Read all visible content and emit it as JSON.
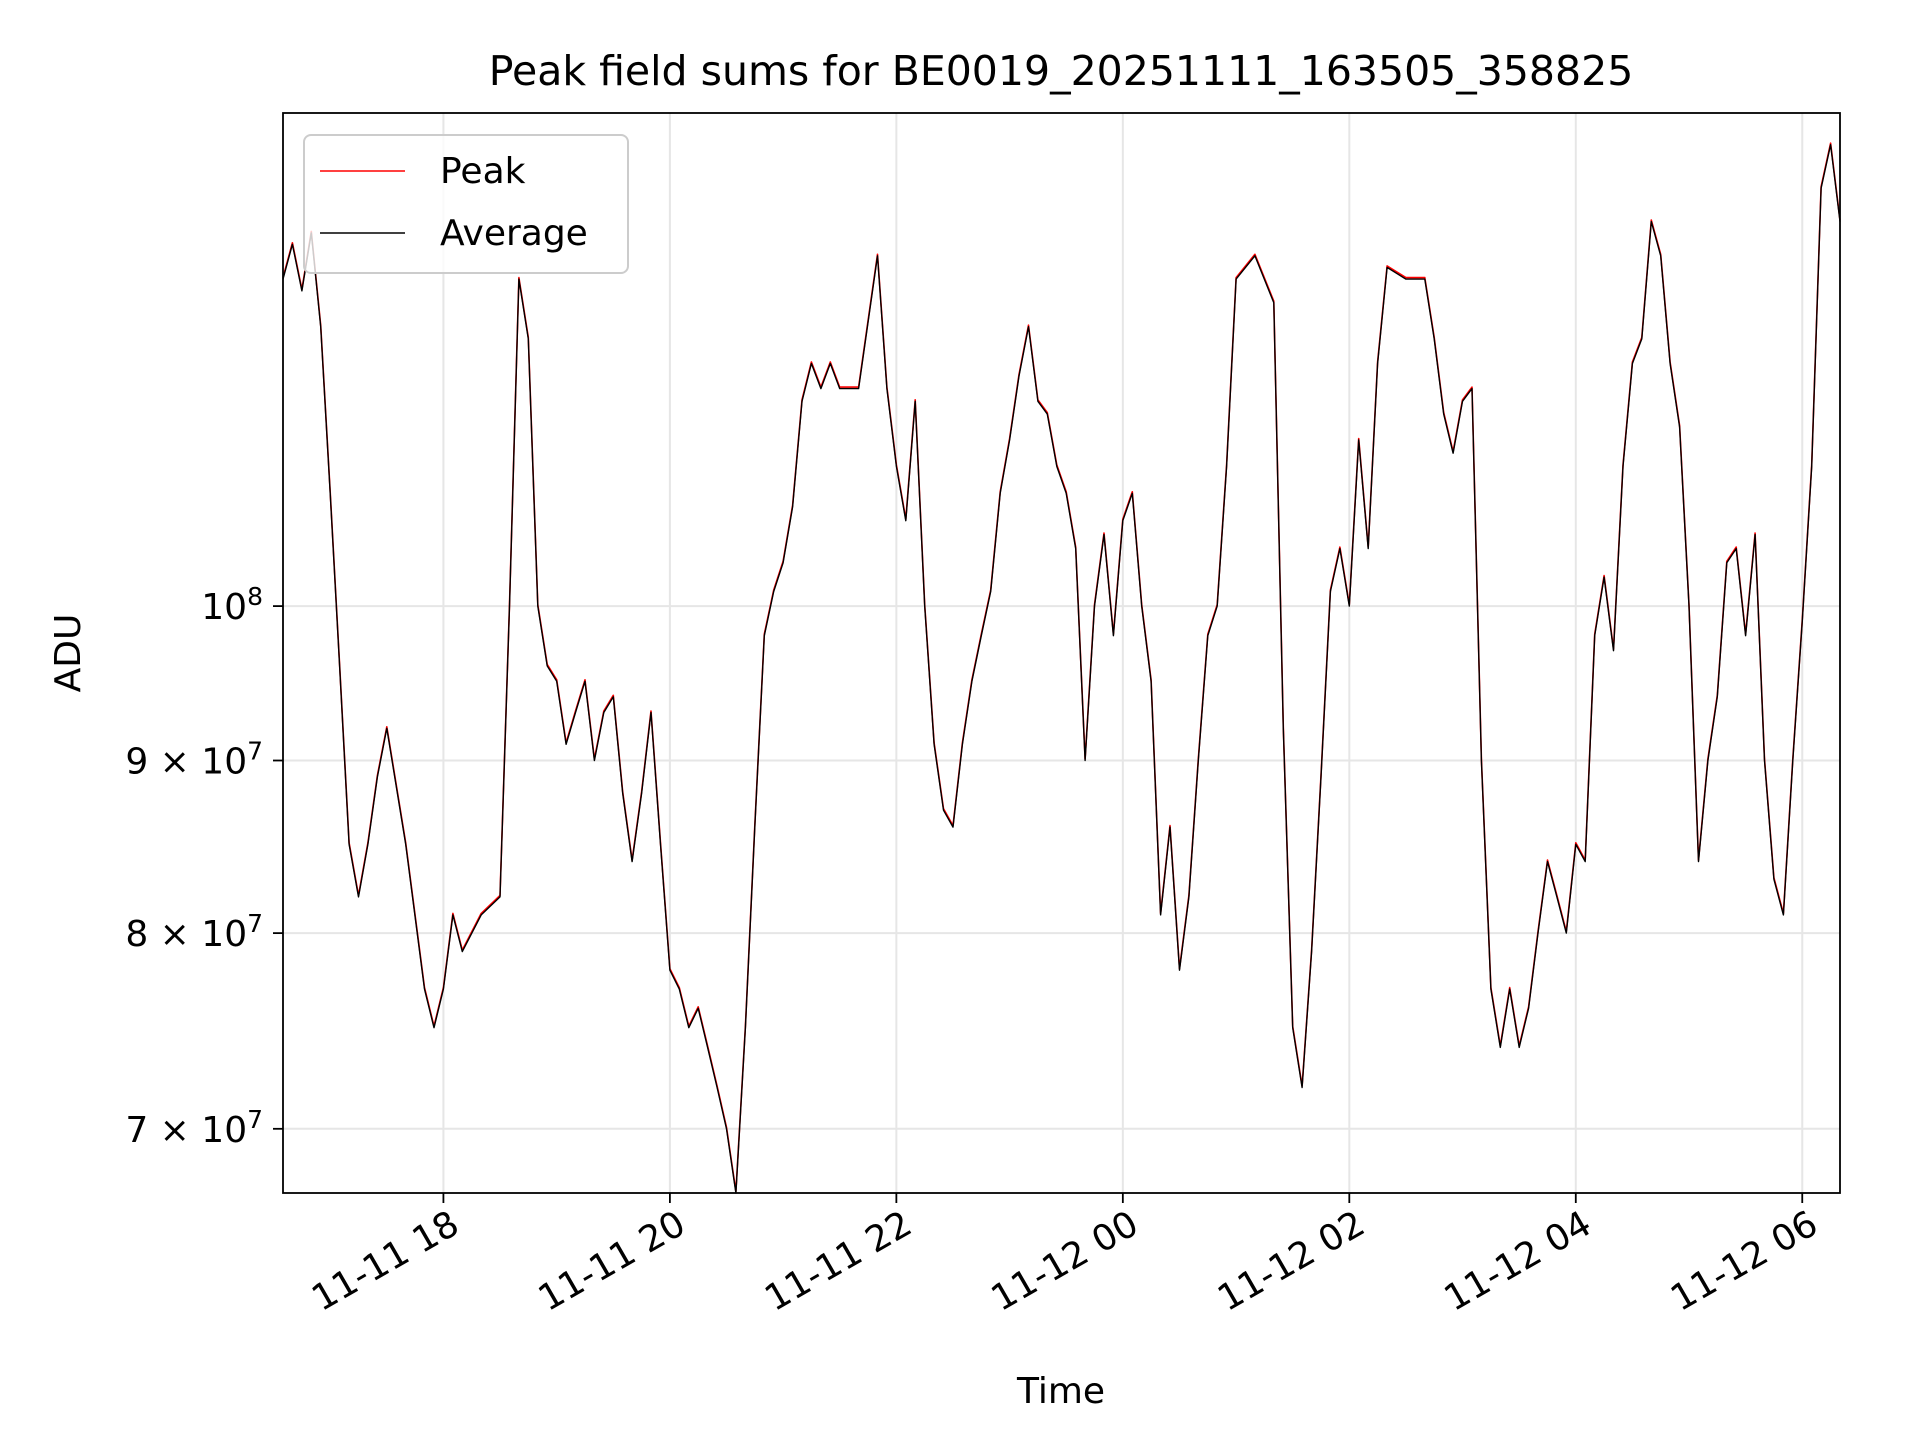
{
  "chart_data": {
    "type": "line",
    "title": "Peak field sums for BE0019_20251111_163505_358825",
    "xlabel": "Time",
    "ylabel": "ADU",
    "y_scale": "log",
    "xlim": [
      "2025-11-11 16:35",
      "2025-11-12 06:20"
    ],
    "ylim": [
      67000000,
      140000000
    ],
    "grid": true,
    "legend_position": "top-left",
    "x_ticks": [
      {
        "value": "2025-11-11 18:00",
        "label": "11-11 18"
      },
      {
        "value": "2025-11-11 20:00",
        "label": "11-11 20"
      },
      {
        "value": "2025-11-11 22:00",
        "label": "11-11 22"
      },
      {
        "value": "2025-11-12 00:00",
        "label": "11-12 00"
      },
      {
        "value": "2025-11-12 02:00",
        "label": "11-12 02"
      },
      {
        "value": "2025-11-12 04:00",
        "label": "11-12 04"
      },
      {
        "value": "2025-11-12 06:00",
        "label": "11-12 06"
      }
    ],
    "y_ticks": [
      {
        "value": 70000000,
        "base": "7 × 10",
        "exp": "7"
      },
      {
        "value": 80000000,
        "base": "8 × 10",
        "exp": "7"
      },
      {
        "value": 90000000,
        "base": "9 × 10",
        "exp": "7"
      },
      {
        "value": 100000000,
        "base": "10",
        "exp": "8"
      }
    ],
    "series": [
      {
        "name": "Peak",
        "color": "#ff0000"
      },
      {
        "name": "Average",
        "color": "#000000"
      }
    ],
    "x": [
      "2025-11-11 16:35",
      "2025-11-11 16:40",
      "2025-11-11 16:45",
      "2025-11-11 16:50",
      "2025-11-11 16:55",
      "2025-11-11 17:00",
      "2025-11-11 17:05",
      "2025-11-11 17:10",
      "2025-11-11 17:15",
      "2025-11-11 17:20",
      "2025-11-11 17:25",
      "2025-11-11 17:30",
      "2025-11-11 17:40",
      "2025-11-11 17:50",
      "2025-11-11 17:55",
      "2025-11-11 18:00",
      "2025-11-11 18:05",
      "2025-11-11 18:10",
      "2025-11-11 18:20",
      "2025-11-11 18:30",
      "2025-11-11 18:35",
      "2025-11-11 18:40",
      "2025-11-11 18:45",
      "2025-11-11 18:50",
      "2025-11-11 18:55",
      "2025-11-11 19:00",
      "2025-11-11 19:05",
      "2025-11-11 19:10",
      "2025-11-11 19:15",
      "2025-11-11 19:20",
      "2025-11-11 19:25",
      "2025-11-11 19:30",
      "2025-11-11 19:35",
      "2025-11-11 19:40",
      "2025-11-11 19:45",
      "2025-11-11 19:50",
      "2025-11-11 19:55",
      "2025-11-11 20:00",
      "2025-11-11 20:05",
      "2025-11-11 20:10",
      "2025-11-11 20:15",
      "2025-11-11 20:20",
      "2025-11-11 20:25",
      "2025-11-11 20:30",
      "2025-11-11 20:35",
      "2025-11-11 20:40",
      "2025-11-11 20:45",
      "2025-11-11 20:50",
      "2025-11-11 20:55",
      "2025-11-11 21:00",
      "2025-11-11 21:05",
      "2025-11-11 21:10",
      "2025-11-11 21:15",
      "2025-11-11 21:20",
      "2025-11-11 21:25",
      "2025-11-11 21:30",
      "2025-11-11 21:40",
      "2025-11-11 21:50",
      "2025-11-11 21:55",
      "2025-11-11 22:00",
      "2025-11-11 22:05",
      "2025-11-11 22:10",
      "2025-11-11 22:15",
      "2025-11-11 22:20",
      "2025-11-11 22:25",
      "2025-11-11 22:30",
      "2025-11-11 22:35",
      "2025-11-11 22:40",
      "2025-11-11 22:45",
      "2025-11-11 22:50",
      "2025-11-11 22:55",
      "2025-11-11 23:00",
      "2025-11-11 23:05",
      "2025-11-11 23:10",
      "2025-11-11 23:15",
      "2025-11-11 23:20",
      "2025-11-11 23:25",
      "2025-11-11 23:30",
      "2025-11-11 23:35",
      "2025-11-11 23:40",
      "2025-11-11 23:45",
      "2025-11-11 23:50",
      "2025-11-11 23:55",
      "2025-11-12 00:00",
      "2025-11-12 00:05",
      "2025-11-12 00:10",
      "2025-11-12 00:15",
      "2025-11-12 00:20",
      "2025-11-12 00:25",
      "2025-11-12 00:30",
      "2025-11-12 00:35",
      "2025-11-12 00:40",
      "2025-11-12 00:45",
      "2025-11-12 00:50",
      "2025-11-12 00:55",
      "2025-11-12 01:00",
      "2025-11-12 01:10",
      "2025-11-12 01:20",
      "2025-11-12 01:25",
      "2025-11-12 01:30",
      "2025-11-12 01:35",
      "2025-11-12 01:40",
      "2025-11-12 01:45",
      "2025-11-12 01:50",
      "2025-11-12 01:55",
      "2025-11-12 02:00",
      "2025-11-12 02:05",
      "2025-11-12 02:10",
      "2025-11-12 02:15",
      "2025-11-12 02:20",
      "2025-11-12 02:30",
      "2025-11-12 02:40",
      "2025-11-12 02:45",
      "2025-11-12 02:50",
      "2025-11-12 02:55",
      "2025-11-12 03:00",
      "2025-11-12 03:05",
      "2025-11-12 03:10",
      "2025-11-12 03:15",
      "2025-11-12 03:20",
      "2025-11-12 03:25",
      "2025-11-12 03:30",
      "2025-11-12 03:35",
      "2025-11-12 03:40",
      "2025-11-12 03:45",
      "2025-11-12 03:50",
      "2025-11-12 03:55",
      "2025-11-12 04:00",
      "2025-11-12 04:05",
      "2025-11-12 04:10",
      "2025-11-12 04:15",
      "2025-11-12 04:20",
      "2025-11-12 04:25",
      "2025-11-12 04:30",
      "2025-11-12 04:35",
      "2025-11-12 04:40",
      "2025-11-12 04:45",
      "2025-11-12 04:50",
      "2025-11-12 04:55",
      "2025-11-12 05:00",
      "2025-11-12 05:05",
      "2025-11-12 05:10",
      "2025-11-12 05:15",
      "2025-11-12 05:20",
      "2025-11-12 05:25",
      "2025-11-12 05:30",
      "2025-11-12 05:35",
      "2025-11-12 05:40",
      "2025-11-12 05:45",
      "2025-11-12 05:50",
      "2025-11-12 05:55",
      "2025-11-12 06:00",
      "2025-11-12 06:05",
      "2025-11-12 06:10",
      "2025-11-12 06:15",
      "2025-11-12 06:20"
    ],
    "values": [
      125000000,
      128000000,
      124000000,
      129000000,
      121000000,
      108000000,
      96000000,
      85000000,
      82000000,
      85000000,
      89000000,
      92000000,
      85000000,
      77000000,
      75000000,
      77000000,
      81000000,
      79000000,
      81000000,
      82000000,
      100000000,
      125000000,
      120000000,
      100000000,
      96000000,
      95000000,
      91000000,
      93000000,
      95000000,
      90000000,
      93000000,
      94000000,
      88000000,
      84000000,
      88000000,
      93000000,
      85000000,
      78000000,
      77000000,
      75000000,
      76000000,
      74000000,
      72000000,
      70000000,
      67000000,
      75000000,
      86000000,
      98000000,
      101000000,
      103000000,
      107000000,
      115000000,
      118000000,
      116000000,
      118000000,
      116000000,
      116000000,
      127000000,
      116000000,
      110000000,
      106000000,
      115000000,
      100000000,
      91000000,
      87000000,
      86000000,
      91000000,
      95000000,
      98000000,
      101000000,
      108000000,
      112000000,
      117000000,
      121000000,
      115000000,
      114000000,
      110000000,
      108000000,
      104000000,
      90000000,
      100000000,
      105000000,
      98000000,
      106000000,
      108000000,
      100000000,
      95000000,
      81000000,
      86000000,
      78000000,
      82000000,
      90000000,
      98000000,
      100000000,
      110000000,
      125000000,
      127000000,
      123000000,
      92000000,
      75000000,
      72000000,
      79000000,
      89000000,
      101000000,
      104000000,
      100000000,
      112000000,
      104000000,
      118000000,
      126000000,
      125000000,
      125000000,
      120000000,
      114000000,
      111000000,
      115000000,
      116000000,
      90000000,
      77000000,
      74000000,
      77000000,
      74000000,
      76000000,
      80000000,
      84000000,
      82000000,
      80000000,
      85000000,
      84000000,
      98000000,
      102000000,
      97000000,
      110000000,
      118000000,
      120000000,
      130000000,
      127000000,
      118000000,
      113000000,
      100000000,
      84000000,
      90000000,
      94000000,
      103000000,
      104000000,
      98000000,
      105000000,
      90000000,
      83000000,
      81000000,
      90000000,
      99000000,
      110000000,
      133000000,
      137000000,
      130000000
    ]
  }
}
